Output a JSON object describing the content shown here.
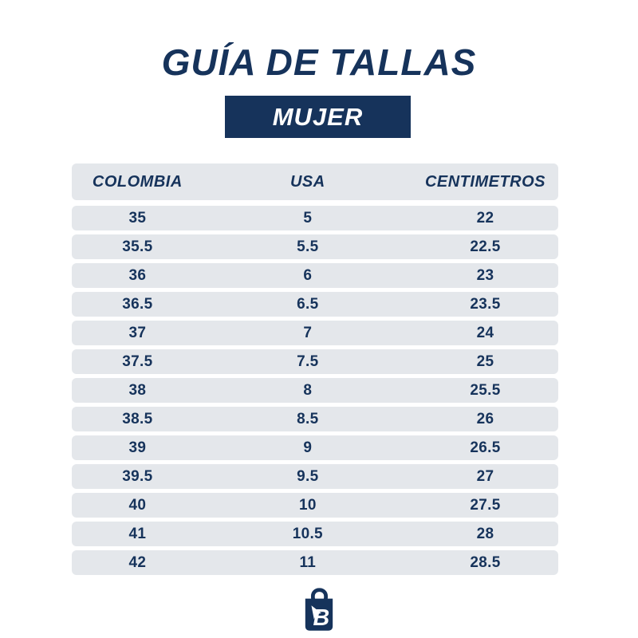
{
  "header": {
    "title": "GUÍA DE TALLAS",
    "subtitle": "MUJER"
  },
  "table": {
    "columns": [
      "COLOMBIA",
      "USA",
      "CENTIMETROS"
    ],
    "rows": [
      [
        "35",
        "5",
        "22"
      ],
      [
        "35.5",
        "5.5",
        "22.5"
      ],
      [
        "36",
        "6",
        "23"
      ],
      [
        "36.5",
        "6.5",
        "23.5"
      ],
      [
        "37",
        "7",
        "24"
      ],
      [
        "37.5",
        "7.5",
        "25"
      ],
      [
        "38",
        "8",
        "25.5"
      ],
      [
        "38.5",
        "8.5",
        "26"
      ],
      [
        "39",
        "9",
        "26.5"
      ],
      [
        "39.5",
        "9.5",
        "27"
      ],
      [
        "40",
        "10",
        "27.5"
      ],
      [
        "41",
        "10.5",
        "28"
      ],
      [
        "42",
        "11",
        "28.5"
      ]
    ]
  },
  "branding": {
    "logo": "shopping-bag-logo"
  },
  "colors": {
    "navy": "#16335B",
    "row_bg": "#E4E7EB",
    "subtitle_bg": "#16335B",
    "subtitle_text": "#FFFFFF",
    "page_bg": "#FFFFFF"
  },
  "chart_data": {
    "type": "table",
    "title": "GUÍA DE TALLAS",
    "subtitle": "MUJER",
    "columns": [
      "COLOMBIA",
      "USA",
      "CENTIMETROS"
    ],
    "rows": [
      [
        35,
        5,
        22
      ],
      [
        35.5,
        5.5,
        22.5
      ],
      [
        36,
        6,
        23
      ],
      [
        36.5,
        6.5,
        23.5
      ],
      [
        37,
        7,
        24
      ],
      [
        37.5,
        7.5,
        25
      ],
      [
        38,
        8,
        25.5
      ],
      [
        38.5,
        8.5,
        26
      ],
      [
        39,
        9,
        26.5
      ],
      [
        39.5,
        9.5,
        27
      ],
      [
        40,
        10,
        27.5
      ],
      [
        41,
        10.5,
        28
      ],
      [
        42,
        11,
        28.5
      ]
    ]
  }
}
